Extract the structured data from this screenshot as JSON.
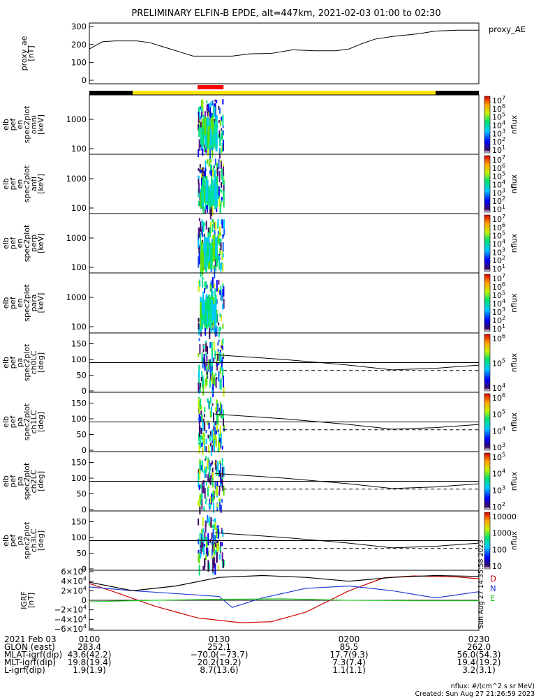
{
  "title": "PRELIMINARY ELFIN-B EPDE, alt=447km, 2021-02-03 01:00 to 02:30",
  "time_range": {
    "start": "01:00",
    "end": "02:30"
  },
  "colors": {
    "orbit_bar_yellow": "#FFE600",
    "orbit_bar_black": "#000000",
    "science_zone_red": "#FF0000",
    "D": "#CC0000",
    "N": "#1E3CD2",
    "E": "#22CC22",
    "trace": "#000000"
  },
  "orbit_bar": [
    {
      "from": "01:00",
      "to": "01:10",
      "color": "black"
    },
    {
      "from": "01:10",
      "to": "02:20",
      "color": "yellow"
    },
    {
      "from": "02:20",
      "to": "02:30",
      "color": "black"
    }
  ],
  "science_zone": {
    "from": "01:25",
    "to": "01:31"
  },
  "panels": [
    {
      "id": "proxy_ae",
      "ylabel": [
        "proxy_ae",
        "[nT]"
      ],
      "right_label": "proxy_AE",
      "yticks": [
        "300",
        "200",
        "100",
        "0"
      ]
    },
    {
      "id": "en_omni",
      "ylabel": [
        "elb",
        "pef",
        "en",
        "spec2plot",
        "omni",
        "[keV]"
      ],
      "yticks": [
        "1000",
        "100"
      ],
      "colorbar": {
        "ticks": [
          "10^7",
          "10^6",
          "10^5",
          "10^4",
          "10^3",
          "10^2",
          "10^1"
        ],
        "label": "nflux"
      }
    },
    {
      "id": "en_anti",
      "ylabel": [
        "elb",
        "pef",
        "en",
        "spec2plot",
        "anti",
        "[keV]"
      ],
      "yticks": [
        "1000",
        "100"
      ],
      "colorbar": {
        "ticks": [
          "10^7",
          "10^6",
          "10^5",
          "10^4",
          "10^3",
          "10^2",
          "10^1"
        ],
        "label": "nflux"
      }
    },
    {
      "id": "en_perp",
      "ylabel": [
        "elb",
        "pef",
        "en",
        "spec2plot",
        "perp",
        "[keV]"
      ],
      "yticks": [
        "1000",
        "100"
      ],
      "colorbar": {
        "ticks": [
          "10^7",
          "10^6",
          "10^5",
          "10^4",
          "10^3",
          "10^2",
          "10^1"
        ],
        "label": "nflux"
      }
    },
    {
      "id": "en_para",
      "ylabel": [
        "elb",
        "pef",
        "en",
        "spec2plot",
        "para",
        "[keV]"
      ],
      "yticks": [
        "1000",
        "100"
      ],
      "colorbar": {
        "ticks": [
          "10^7",
          "10^6",
          "10^5",
          "10^4",
          "10^3",
          "10^2",
          "10^1"
        ],
        "label": "nflux"
      }
    },
    {
      "id": "pa_ch0",
      "ylabel": [
        "elb",
        "pef",
        "pa",
        "spec2plot",
        "ch0LC",
        "[deg]"
      ],
      "yticks": [
        "150",
        "100",
        "50",
        "0"
      ],
      "colorbar": {
        "ticks": [
          "10^6",
          "10^5",
          "10^4"
        ],
        "label": "nflux"
      }
    },
    {
      "id": "pa_ch1",
      "ylabel": [
        "elb",
        "pef",
        "pa",
        "spec2plot",
        "ch1LC",
        "[deg]"
      ],
      "yticks": [
        "150",
        "100",
        "50",
        "0"
      ],
      "colorbar": {
        "ticks": [
          "10^6",
          "10^5",
          "10^4",
          "10^3"
        ],
        "label": "nflux"
      }
    },
    {
      "id": "pa_ch2",
      "ylabel": [
        "elb",
        "pef",
        "pa",
        "spec2plot",
        "ch2LC",
        "[deg]"
      ],
      "yticks": [
        "150",
        "100",
        "50",
        "0"
      ],
      "colorbar": {
        "ticks": [
          "10^5",
          "10^4",
          "10^3",
          "10^2"
        ],
        "label": "nflux"
      }
    },
    {
      "id": "pa_ch3",
      "ylabel": [
        "elb",
        "pef",
        "pa",
        "spec2plot",
        "ch3LC",
        "[deg]"
      ],
      "yticks": [
        "150",
        "100",
        "50",
        "0"
      ],
      "colorbar": {
        "ticks": [
          "10000",
          "1000",
          "100",
          "10"
        ],
        "label": "nflux"
      }
    },
    {
      "id": "igrf",
      "ylabel": [
        "IGRF",
        "[nT]"
      ],
      "yticks": [
        "6×10^4",
        "4×10^4",
        "2×10^4",
        "0",
        "−2×10^4",
        "−4×10^4",
        "−6×10^4"
      ],
      "legend": [
        "D",
        "N",
        "E"
      ],
      "side_text": "Sun Aug 27 14:35:58 2023"
    }
  ],
  "chart_data": [
    {
      "type": "line",
      "panel": "proxy_ae",
      "x": [
        "01:00",
        "01:03",
        "01:06",
        "01:11",
        "01:14",
        "01:18",
        "01:22",
        "01:24",
        "01:27",
        "01:30",
        "01:33",
        "01:37",
        "01:42",
        "01:47",
        "01:52",
        "01:57",
        "02:00",
        "02:03",
        "02:06",
        "02:10",
        "02:16",
        "02:20",
        "02:25",
        "02:30"
      ],
      "y": [
        175,
        215,
        220,
        220,
        210,
        180,
        150,
        135,
        135,
        135,
        135,
        148,
        150,
        170,
        165,
        165,
        175,
        205,
        230,
        245,
        260,
        275,
        280,
        280
      ],
      "ylim": [
        0,
        320
      ]
    },
    {
      "type": "line",
      "panel": "pa_ch0..ch3 (reference)",
      "x": [
        "01:29",
        "01:45",
        "02:00",
        "02:10",
        "02:20",
        "02:30"
      ],
      "y": [
        115,
        100,
        82,
        67,
        72,
        82
      ],
      "dashed_y": 65,
      "solid_y": 90,
      "ylim": [
        0,
        180
      ]
    },
    {
      "type": "line",
      "panel": "igrf",
      "series": [
        {
          "name": "D",
          "x": [
            "01:00",
            "01:05",
            "01:15",
            "01:25",
            "01:35",
            "01:42",
            "01:50",
            "02:00",
            "02:08",
            "02:15",
            "02:25",
            "02:30"
          ],
          "y": [
            35000,
            20000,
            -12000,
            -37000,
            -47000,
            -45000,
            -25000,
            20000,
            47000,
            51000,
            49000,
            45000
          ]
        },
        {
          "name": "N",
          "x": [
            "01:00",
            "01:10",
            "01:20",
            "01:30",
            "01:33",
            "01:40",
            "01:50",
            "02:00",
            "02:10",
            "02:20",
            "02:30"
          ],
          "y": [
            28000,
            20000,
            14000,
            8000,
            -15000,
            5000,
            25000,
            30000,
            20000,
            5000,
            18000
          ]
        },
        {
          "name": "E",
          "x": [
            "01:00",
            "01:15",
            "01:30",
            "01:45",
            "02:00",
            "02:15",
            "02:30"
          ],
          "y": [
            -3000,
            0,
            2000,
            3000,
            0,
            -1000,
            -1000
          ]
        },
        {
          "name": "total",
          "x": [
            "01:00",
            "01:10",
            "01:20",
            "01:30",
            "01:40",
            "01:50",
            "02:00",
            "02:10",
            "02:20",
            "02:30"
          ],
          "y": [
            38000,
            20000,
            30000,
            48000,
            52000,
            48000,
            40000,
            48000,
            52000,
            50000
          ]
        }
      ],
      "ylim": [
        -60000,
        60000
      ]
    }
  ],
  "footer": {
    "rows": [
      {
        "label": "2021 Feb 03",
        "values": [
          "0100",
          "0130",
          "0200",
          "0230"
        ]
      },
      {
        "label": "GLON (east)",
        "values": [
          "283.4",
          "252.1",
          "85.5",
          "262.0"
        ]
      },
      {
        "label": "MLAT-igrf(dip)",
        "values": [
          "43.6(42.2)",
          "−70.0(−73.7)",
          "17.7(9.3)",
          "56.0(54.3)"
        ]
      },
      {
        "label": "MLT-igrf(dip)",
        "values": [
          "19.8(19.4)",
          "20.2(19.2)",
          "7.3(7.4)",
          "19.4(19.2)"
        ]
      },
      {
        "label": "L-igrf(dip)",
        "values": [
          "1.9(1.9)",
          "8.7(13.6)",
          "1.1(1.1)",
          "3.2(3.1)"
        ]
      }
    ],
    "units": "nflux: #/(cm^2 s sr MeV)",
    "created": "Created: Sun Aug 27 21:26:59 2023"
  }
}
